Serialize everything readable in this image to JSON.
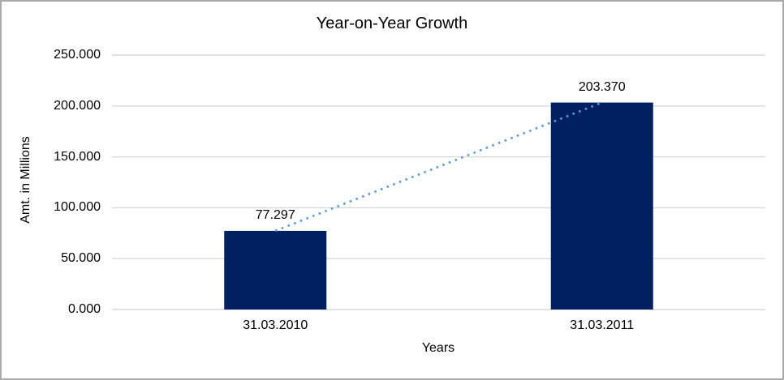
{
  "window": {
    "background_color": "#ffffff",
    "border_color": "#ababab"
  },
  "chart_data": {
    "type": "bar",
    "title": "Year-on-Year Growth",
    "xlabel": "Years",
    "ylabel": "Amt. in Millions",
    "categories": [
      "31.03.2010",
      "31.03.2011"
    ],
    "values": [
      77.297,
      203.37
    ],
    "data_labels": [
      "77.297",
      "203.370"
    ],
    "ylim": [
      0,
      250
    ],
    "y_tick_step": 50,
    "y_tick_labels": [
      "0.000",
      "50.000",
      "100.000",
      "150.000",
      "200.000",
      "250.000"
    ],
    "grid": true,
    "legend": false,
    "bar_color": "#002060",
    "gridline_color": "#d9d9d9",
    "text_color": "#000000",
    "trendline": {
      "type": "linear",
      "style": "dotted",
      "color": "#5b9bd5"
    }
  }
}
